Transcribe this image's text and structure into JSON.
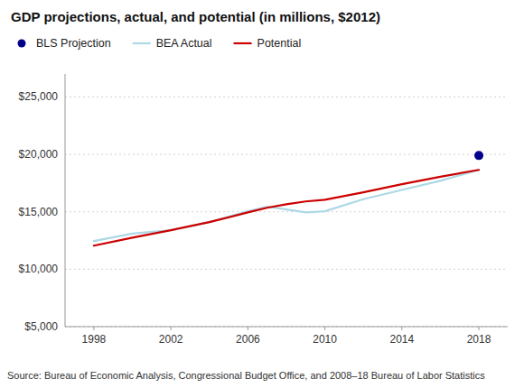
{
  "chart_data": {
    "type": "line",
    "title": "GDP projections, actual, and potential (in millions, $2012)",
    "annotations": [
      "Source: Bureau of Economic Analysis, Congressional Budget Office, and 2008–18 Bureau of Labor Statistics"
    ],
    "x": [
      1998,
      2000,
      2002,
      2004,
      2006,
      2007,
      2008,
      2009,
      2010,
      2012,
      2014,
      2016,
      2018
    ],
    "series": [
      {
        "name": "BLS Projection",
        "type": "scatter",
        "marker": "circle",
        "color": "#00008B",
        "values": [
          null,
          null,
          null,
          null,
          null,
          null,
          null,
          null,
          null,
          null,
          null,
          null,
          19900
        ]
      },
      {
        "name": "BEA Actual",
        "type": "line",
        "color": "#ADD8E6",
        "values": [
          12450,
          13100,
          13400,
          14100,
          15050,
          15450,
          15200,
          14950,
          15050,
          16100,
          16900,
          17700,
          18650
        ]
      },
      {
        "name": "Potential",
        "type": "line",
        "color": "#CC0000",
        "values": [
          12050,
          12750,
          13400,
          14100,
          14950,
          15350,
          15650,
          15900,
          16050,
          16700,
          17400,
          18050,
          18650
        ]
      }
    ],
    "xlim": [
      1996.5,
      2019.5
    ],
    "xticks": [
      1998,
      2002,
      2006,
      2010,
      2014,
      2018
    ],
    "ylim": [
      5000,
      27000
    ],
    "yticks": [
      {
        "value": 5000,
        "label": "$5,000"
      },
      {
        "value": 10000,
        "label": "$10,000"
      },
      {
        "value": 15000,
        "label": "$15,000"
      },
      {
        "value": 20000,
        "label": "$20,000"
      },
      {
        "value": 25000,
        "label": "$25,000"
      }
    ],
    "grid": true,
    "legend": "top"
  }
}
